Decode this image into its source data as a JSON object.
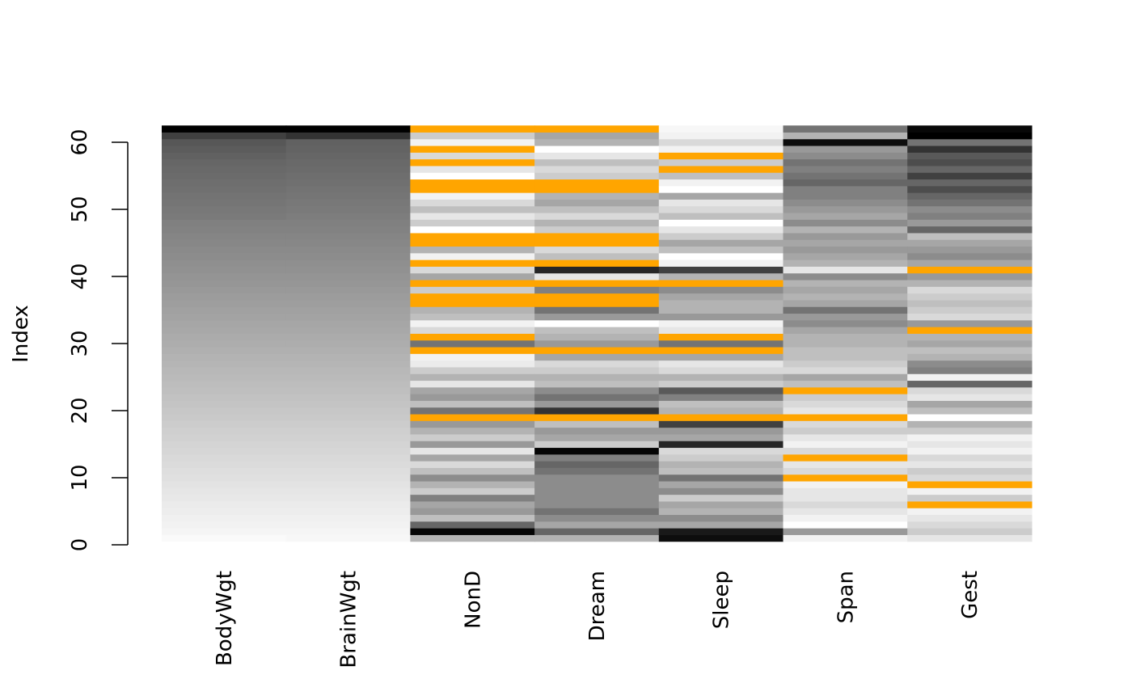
{
  "chart_data": {
    "type": "heatmap",
    "title": "",
    "xlabel": "",
    "ylabel": "Index",
    "ylim": [
      1,
      62
    ],
    "yticks": [
      "0",
      "10",
      "20",
      "30",
      "40",
      "50",
      "60"
    ],
    "grid": false,
    "legend": "none",
    "missing_color": "#FFA500",
    "value_scale": "grayscale, 0 = white (low rank) to 1 = black (high rank)",
    "columns": [
      "BodyWgt",
      "BrainWgt",
      "NonD",
      "Dream",
      "Sleep",
      "Span",
      "Gest"
    ],
    "rows": 62,
    "values": {
      "BodyWgt": [
        0.02,
        0.04,
        0.05,
        0.06,
        0.07,
        0.08,
        0.09,
        0.1,
        0.11,
        0.12,
        0.13,
        0.14,
        0.15,
        0.16,
        0.17,
        0.18,
        0.19,
        0.2,
        0.21,
        0.22,
        0.23,
        0.24,
        0.25,
        0.26,
        0.27,
        0.28,
        0.29,
        0.3,
        0.31,
        0.32,
        0.33,
        0.34,
        0.35,
        0.36,
        0.37,
        0.38,
        0.39,
        0.4,
        0.41,
        0.42,
        0.43,
        0.44,
        0.45,
        0.46,
        0.47,
        0.48,
        0.49,
        0.5,
        0.52,
        0.53,
        0.54,
        0.55,
        0.56,
        0.57,
        0.58,
        0.59,
        0.6,
        0.62,
        0.64,
        0.66,
        0.75,
        1.0
      ],
      "BrainWgt": [
        0.03,
        0.04,
        0.05,
        0.06,
        0.07,
        0.08,
        0.09,
        0.1,
        0.11,
        0.12,
        0.13,
        0.14,
        0.15,
        0.16,
        0.17,
        0.18,
        0.19,
        0.2,
        0.21,
        0.22,
        0.23,
        0.24,
        0.25,
        0.26,
        0.27,
        0.28,
        0.29,
        0.3,
        0.31,
        0.32,
        0.33,
        0.34,
        0.35,
        0.36,
        0.37,
        0.38,
        0.39,
        0.4,
        0.41,
        0.42,
        0.43,
        0.44,
        0.45,
        0.46,
        0.47,
        0.48,
        0.49,
        0.5,
        0.51,
        0.52,
        0.53,
        0.54,
        0.55,
        0.56,
        0.57,
        0.58,
        0.59,
        0.6,
        0.61,
        0.62,
        0.8,
        1.0
      ],
      "NonD": [
        0.3,
        0.98,
        0.6,
        0.25,
        0.4,
        0.35,
        0.5,
        0.2,
        0.3,
        0.45,
        0.25,
        0.15,
        0.35,
        0.1,
        0.4,
        0.2,
        0.3,
        0.4,
        null,
        0.55,
        0.25,
        0.4,
        0.35,
        0.1,
        0.3,
        0.2,
        0.08,
        0.05,
        null,
        0.55,
        null,
        0.15,
        0.05,
        0.25,
        0.3,
        null,
        null,
        0.2,
        null,
        0.35,
        0.15,
        null,
        0.05,
        0.3,
        null,
        null,
        0.0,
        0.2,
        0.1,
        0.25,
        0.15,
        0.05,
        null,
        null,
        0.0,
        0.1,
        null,
        0.15,
        null,
        0.05,
        0.2,
        null
      ],
      "Dream": [
        0.3,
        0.6,
        0.35,
        0.45,
        0.55,
        0.45,
        0.45,
        0.45,
        0.45,
        0.45,
        0.55,
        0.6,
        0.5,
        0.98,
        0.2,
        0.35,
        0.4,
        0.25,
        null,
        0.8,
        0.4,
        0.55,
        0.45,
        0.25,
        0.3,
        0.2,
        0.15,
        0.35,
        null,
        0.4,
        0.3,
        0.25,
        0.0,
        0.4,
        0.55,
        null,
        null,
        0.5,
        null,
        0.1,
        0.85,
        null,
        0.25,
        0.15,
        null,
        null,
        0.2,
        0.3,
        0.15,
        0.25,
        0.35,
        0.3,
        null,
        null,
        0.2,
        0.15,
        0.25,
        0.1,
        0.0,
        0.3,
        0.35,
        null
      ],
      "Sleep": [
        0.95,
        0.9,
        0.35,
        0.45,
        0.3,
        0.35,
        0.2,
        0.45,
        0.35,
        0.55,
        0.25,
        0.3,
        0.2,
        0.15,
        0.85,
        0.35,
        0.4,
        0.75,
        null,
        0.3,
        0.25,
        0.5,
        0.65,
        0.2,
        0.3,
        0.15,
        0.1,
        0.35,
        null,
        0.55,
        null,
        0.1,
        0.05,
        0.4,
        0.3,
        0.3,
        0.35,
        0.45,
        null,
        0.3,
        0.75,
        0.05,
        0.0,
        0.25,
        0.35,
        0.2,
        0.1,
        0.0,
        0.25,
        0.15,
        0.1,
        0.35,
        0.0,
        0.05,
        0.25,
        null,
        0.2,
        null,
        0.05,
        0.15,
        0.05,
        0.03
      ],
      "Span": [
        0.05,
        0.4,
        0.0,
        0.05,
        0.1,
        0.15,
        0.1,
        0.1,
        0.05,
        null,
        0.15,
        0.1,
        null,
        0.15,
        0.05,
        0.1,
        0.2,
        0.15,
        null,
        0.1,
        0.15,
        0.2,
        null,
        0.25,
        0.35,
        0.15,
        0.2,
        0.25,
        0.25,
        0.3,
        0.3,
        0.35,
        0.45,
        0.4,
        0.55,
        0.35,
        0.3,
        0.35,
        0.3,
        0.45,
        0.1,
        0.3,
        0.35,
        0.4,
        0.35,
        0.4,
        0.3,
        0.45,
        0.35,
        0.4,
        0.45,
        0.5,
        0.5,
        0.6,
        0.55,
        0.5,
        0.55,
        0.45,
        0.4,
        0.95,
        0.3,
        0.55
      ],
      "Gest": [
        0.1,
        0.2,
        0.15,
        0.1,
        0.05,
        null,
        0.2,
        0.05,
        null,
        0.15,
        0.2,
        0.1,
        0.15,
        0.05,
        0.1,
        0.05,
        0.2,
        0.3,
        0.0,
        0.25,
        0.35,
        0.1,
        0.15,
        0.6,
        0.05,
        0.5,
        0.45,
        0.3,
        0.25,
        0.35,
        0.3,
        null,
        0.4,
        0.15,
        0.2,
        0.25,
        0.2,
        0.15,
        0.3,
        0.4,
        null,
        0.35,
        0.45,
        0.4,
        0.35,
        0.25,
        0.6,
        0.4,
        0.5,
        0.45,
        0.55,
        0.6,
        0.7,
        0.6,
        0.75,
        0.6,
        0.7,
        0.65,
        0.8,
        0.55,
        1.0,
        0.97
      ]
    }
  }
}
